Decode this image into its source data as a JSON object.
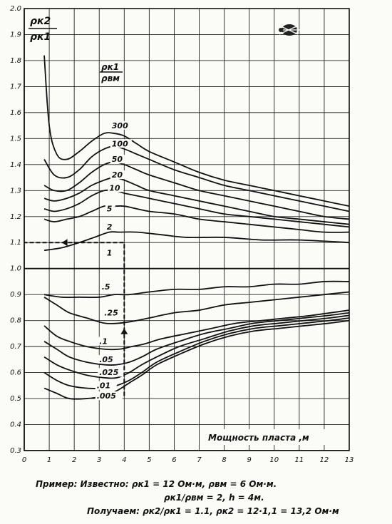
{
  "chart_data": {
    "type": "line",
    "title": "",
    "ylabel_top": "ρк2",
    "ylabel_bottom": "ρк1",
    "xlabel": "Мощность пласта ,м",
    "param_label_top": "ρк1",
    "param_label_bottom": "ρвм",
    "xlim": [
      0,
      13
    ],
    "ylim": [
      0.3,
      2.0
    ],
    "x_ticks": [
      "0",
      "1",
      "2",
      "3",
      "4",
      "5",
      "6",
      "7",
      "8",
      "9",
      "10",
      "11",
      "12",
      "13"
    ],
    "y_ticks": [
      "0.3",
      "0.4",
      "0.5",
      "0.6",
      "0.7",
      "0.8",
      "0.9",
      "1.0",
      "1.1",
      "1.2",
      "1.3",
      "1.4",
      "1.5",
      "1.6",
      "1.7",
      "1.8",
      "1.9",
      "2.0"
    ],
    "grid": true,
    "series": [
      {
        "name": "300",
        "x": [
          0.8,
          1.0,
          1.3,
          1.7,
          2.2,
          2.7,
          3.2,
          3.6,
          4.0,
          4.5,
          5,
          6,
          7,
          8,
          9,
          10,
          11,
          12,
          13
        ],
        "y": [
          1.82,
          1.55,
          1.44,
          1.42,
          1.45,
          1.49,
          1.52,
          1.52,
          1.51,
          1.48,
          1.45,
          1.41,
          1.37,
          1.34,
          1.32,
          1.3,
          1.28,
          1.26,
          1.24
        ]
      },
      {
        "name": "100",
        "x": [
          0.8,
          1.2,
          1.7,
          2.2,
          2.7,
          3.2,
          3.6,
          4,
          4.5,
          5,
          6,
          7,
          8,
          9,
          10,
          11,
          12,
          13
        ],
        "y": [
          1.42,
          1.36,
          1.35,
          1.38,
          1.43,
          1.46,
          1.47,
          1.46,
          1.44,
          1.42,
          1.38,
          1.35,
          1.32,
          1.3,
          1.28,
          1.26,
          1.24,
          1.22
        ]
      },
      {
        "name": "50",
        "x": [
          0.8,
          1.2,
          1.7,
          2.2,
          2.7,
          3.2,
          3.6,
          4,
          4.5,
          5,
          6,
          7,
          8,
          9,
          10,
          11,
          12,
          13
        ],
        "y": [
          1.32,
          1.3,
          1.3,
          1.33,
          1.37,
          1.4,
          1.41,
          1.4,
          1.38,
          1.36,
          1.33,
          1.3,
          1.28,
          1.26,
          1.24,
          1.22,
          1.2,
          1.19
        ]
      },
      {
        "name": "20",
        "x": [
          0.8,
          1.2,
          1.7,
          2.2,
          2.7,
          3.2,
          3.6,
          4,
          4.5,
          5,
          6,
          7,
          8,
          9,
          10,
          11,
          12,
          13
        ],
        "y": [
          1.27,
          1.26,
          1.27,
          1.29,
          1.32,
          1.34,
          1.35,
          1.34,
          1.32,
          1.3,
          1.28,
          1.26,
          1.24,
          1.22,
          1.2,
          1.19,
          1.18,
          1.17
        ]
      },
      {
        "name": "10",
        "x": [
          0.8,
          1.2,
          1.7,
          2.2,
          2.7,
          3.2,
          3.6,
          4,
          4.5,
          5,
          6,
          7,
          8,
          9,
          10,
          11,
          12,
          13
        ],
        "y": [
          1.23,
          1.22,
          1.23,
          1.25,
          1.28,
          1.3,
          1.3,
          1.29,
          1.28,
          1.27,
          1.25,
          1.23,
          1.21,
          1.2,
          1.19,
          1.18,
          1.17,
          1.16
        ]
      },
      {
        "name": "5",
        "x": [
          0.8,
          1.2,
          1.7,
          2.2,
          2.7,
          3.2,
          3.6,
          4,
          4.5,
          5,
          6,
          7,
          8,
          9,
          10,
          11,
          12,
          13
        ],
        "y": [
          1.19,
          1.18,
          1.19,
          1.2,
          1.22,
          1.24,
          1.24,
          1.24,
          1.23,
          1.22,
          1.21,
          1.19,
          1.18,
          1.17,
          1.16,
          1.15,
          1.14,
          1.14
        ]
      },
      {
        "name": "2",
        "x": [
          0.8,
          1.5,
          2.2,
          2.8,
          3.4,
          3.8,
          4.5,
          5.5,
          6.5,
          8,
          9.5,
          11,
          13
        ],
        "y": [
          1.07,
          1.08,
          1.1,
          1.12,
          1.14,
          1.14,
          1.14,
          1.13,
          1.12,
          1.12,
          1.11,
          1.11,
          1.1
        ]
      },
      {
        "name": "1",
        "x": [
          0,
          13
        ],
        "y": [
          1.0,
          1.0
        ]
      },
      {
        "name": ".5",
        "x": [
          0.8,
          1.5,
          2.2,
          3,
          3.6,
          4.2,
          5,
          6,
          7,
          8,
          9,
          10,
          11,
          12,
          13
        ],
        "y": [
          0.9,
          0.89,
          0.89,
          0.89,
          0.9,
          0.9,
          0.91,
          0.92,
          0.92,
          0.93,
          0.93,
          0.94,
          0.94,
          0.95,
          0.95
        ]
      },
      {
        "name": ".25",
        "x": [
          0.8,
          1.3,
          1.8,
          2.5,
          3.2,
          3.8,
          4.5,
          5,
          6,
          7,
          8,
          9,
          10,
          11,
          12,
          13
        ],
        "y": [
          0.89,
          0.86,
          0.83,
          0.81,
          0.79,
          0.79,
          0.8,
          0.81,
          0.83,
          0.84,
          0.86,
          0.87,
          0.88,
          0.89,
          0.9,
          0.91
        ]
      },
      {
        "name": ".1",
        "x": [
          0.8,
          1.3,
          1.8,
          2.5,
          3.2,
          3.8,
          4.3,
          4.8,
          5.5,
          6.5,
          7.5,
          8.5,
          9.5,
          10.5,
          11.5,
          13
        ],
        "y": [
          0.78,
          0.74,
          0.72,
          0.7,
          0.69,
          0.69,
          0.7,
          0.71,
          0.73,
          0.75,
          0.77,
          0.79,
          0.8,
          0.81,
          0.82,
          0.84
        ]
      },
      {
        "name": ".05",
        "x": [
          0.8,
          1.3,
          1.8,
          2.5,
          3.2,
          3.7,
          4.2,
          4.7,
          5.3,
          6.2,
          7.2,
          8.2,
          9.2,
          10.2,
          11.2,
          12.2,
          13
        ],
        "y": [
          0.72,
          0.69,
          0.66,
          0.64,
          0.63,
          0.63,
          0.64,
          0.66,
          0.69,
          0.72,
          0.75,
          0.77,
          0.79,
          0.8,
          0.81,
          0.82,
          0.83
        ]
      },
      {
        "name": ".025",
        "x": [
          0.8,
          1.3,
          1.8,
          2.5,
          3.2,
          3.7,
          4.2,
          4.7,
          5.3,
          6.2,
          7.2,
          8.2,
          9.2,
          10.2,
          11.2,
          12.2,
          13
        ],
        "y": [
          0.66,
          0.63,
          0.61,
          0.59,
          0.58,
          0.58,
          0.6,
          0.63,
          0.66,
          0.7,
          0.73,
          0.76,
          0.78,
          0.79,
          0.8,
          0.81,
          0.82
        ]
      },
      {
        "name": ".01",
        "x": [
          0.8,
          1.3,
          1.8,
          2.5,
          3.2,
          3.7,
          4.2,
          4.7,
          5.3,
          6.2,
          7.2,
          8.2,
          9.2,
          10.2,
          11.2,
          12.2,
          13
        ],
        "y": [
          0.6,
          0.57,
          0.55,
          0.54,
          0.54,
          0.55,
          0.57,
          0.6,
          0.64,
          0.68,
          0.72,
          0.75,
          0.77,
          0.78,
          0.79,
          0.8,
          0.81
        ]
      },
      {
        "name": ".005",
        "x": [
          0.8,
          1.3,
          1.8,
          2.5,
          3.2,
          3.7,
          4.2,
          4.7,
          5.3,
          6.2,
          7.2,
          8.2,
          9.2,
          10.2,
          11.2,
          12.2,
          13
        ],
        "y": [
          0.54,
          0.52,
          0.5,
          0.5,
          0.51,
          0.53,
          0.56,
          0.59,
          0.63,
          0.67,
          0.71,
          0.74,
          0.76,
          0.77,
          0.78,
          0.79,
          0.8
        ]
      }
    ],
    "label_x": [
      3.5,
      3.5,
      3.5,
      3.5,
      3.4,
      3.3,
      3.3,
      3.3,
      3.1,
      3.2,
      3.0,
      3.0,
      3.0,
      2.9,
      2.9
    ],
    "label_y": [
      1.54,
      1.47,
      1.41,
      1.35,
      1.3,
      1.22,
      1.15,
      1.05,
      0.92,
      0.82,
      0.71,
      0.64,
      0.59,
      0.54,
      0.5
    ],
    "example": {
      "h": 4,
      "ratio": 1.1,
      "points": [
        {
          "x": 4,
          "y": 0.51
        },
        {
          "x": 4,
          "y": 1.1
        },
        {
          "x": 0,
          "y": 1.1
        }
      ]
    },
    "annotations": {
      "line1": "Пример: Известно: ρк1 = 12 Ом·м,  ρвм = 6 Ом·м.",
      "line2": "ρк1/ρвм = 2,   h = 4м.",
      "line3": "Получаем: ρк2/ρк1 = 1.1,  ρк2 = 12·1,1 = 13,2 Ом·м"
    }
  },
  "colors": {
    "ink": "#111111",
    "paper": "#fbfbf8"
  },
  "icons": [
    "emblem-icon"
  ]
}
